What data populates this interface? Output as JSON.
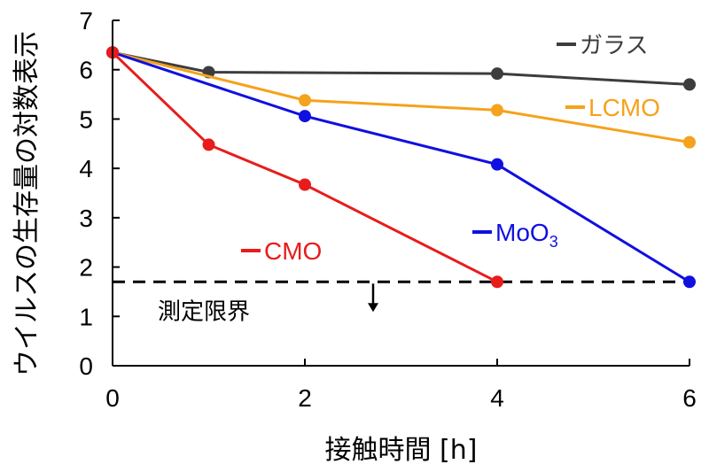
{
  "chart_data": {
    "type": "line",
    "xlabel": "接触時間 [h]",
    "ylabel": "ウイルスの生存量の対数表示",
    "xlim": [
      0,
      6
    ],
    "ylim": [
      0,
      7
    ],
    "x_ticks": [
      "0",
      "2",
      "4",
      "6"
    ],
    "y_ticks": [
      "0",
      "1",
      "2",
      "3",
      "4",
      "5",
      "6",
      "7"
    ],
    "grid": false,
    "legend": "inline",
    "series": [
      {
        "name": "ガラス",
        "color": "#3d3d3d",
        "points": [
          [
            0,
            6.35
          ],
          [
            1,
            5.95
          ],
          [
            4,
            5.92
          ],
          [
            6,
            5.7
          ]
        ]
      },
      {
        "name": "LCMO",
        "color": "#f5a21c",
        "points": [
          [
            0,
            6.35
          ],
          [
            2,
            5.38
          ],
          [
            4,
            5.18
          ],
          [
            6,
            4.53
          ]
        ]
      },
      {
        "name": "MoO",
        "name_sub": "3",
        "color": "#1010e0",
        "points": [
          [
            0,
            6.35
          ],
          [
            2,
            5.06
          ],
          [
            4,
            4.08
          ],
          [
            6,
            1.7
          ]
        ]
      },
      {
        "name": "CMO",
        "color": "#e81c1c",
        "points": [
          [
            0,
            6.35
          ],
          [
            1,
            4.48
          ],
          [
            2,
            3.67
          ],
          [
            4,
            1.7
          ]
        ]
      }
    ],
    "detection_limit": {
      "value": 1.7,
      "label": "測定限界"
    }
  }
}
